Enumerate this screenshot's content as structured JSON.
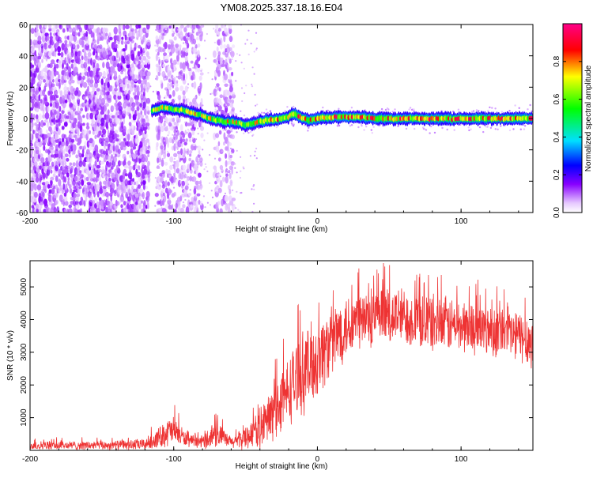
{
  "title": "YM08.2025.337.18.16.E04",
  "chart_data": [
    {
      "type": "heatmap",
      "xlabel": "Height of straight line (km)",
      "ylabel": "Frequency (Hz)",
      "xlim": [
        -200,
        150
      ],
      "ylim": [
        -60,
        60
      ],
      "xticks": [
        -200,
        -100,
        0,
        100
      ],
      "xtick_labels": [
        "-200",
        "-100",
        "0",
        "100"
      ],
      "yticks": [
        -60,
        -40,
        -20,
        0,
        20,
        40,
        60
      ],
      "ytick_labels": [
        "-60",
        "-40",
        "-20",
        "0",
        "20",
        "40",
        "60"
      ],
      "colorbar": {
        "label": "Normalized spectral amplitude",
        "range": [
          0,
          1
        ],
        "ticks": [
          0,
          0.2,
          0.4,
          0.6,
          0.8
        ],
        "tick_labels": [
          "0.0",
          "0.2",
          "0.4",
          "0.6",
          "0.8"
        ],
        "colors": [
          "#ffffff",
          "#8800ff",
          "#0000ff",
          "#00e0ff",
          "#00ff00",
          "#ffff00",
          "#ff0000",
          "#ff0088"
        ]
      },
      "noise_region_x": [
        -200,
        -117
      ],
      "noise_strips_x": [
        [
          -112,
          -80
        ],
        [
          -72,
          -58
        ]
      ],
      "signal_ridge": {
        "x": [
          -115,
          -108,
          -100,
          -92,
          -85,
          -80,
          -75,
          -70,
          -65,
          -60,
          -55,
          -50,
          -45,
          -40,
          -35,
          -30,
          -25,
          -20,
          -17,
          -14,
          -10,
          -5,
          0,
          10,
          20,
          30,
          40,
          50,
          60,
          80,
          100,
          120,
          150
        ],
        "freq": [
          5,
          7,
          6,
          5,
          3,
          2,
          0,
          -1,
          -2,
          -2,
          -3,
          -4,
          -3,
          -2,
          -1,
          -1,
          0,
          1,
          3,
          2,
          0,
          -1,
          0,
          1,
          1,
          1,
          0,
          0,
          0,
          0,
          0,
          0,
          0
        ]
      }
    },
    {
      "type": "line",
      "xlabel": "Height of straight line (km)",
      "ylabel": "SNR (10 * v/v)",
      "xlim": [
        -200,
        150
      ],
      "ylim": [
        0,
        5800
      ],
      "xticks": [
        -200,
        -100,
        0,
        100
      ],
      "xtick_labels": [
        "-200",
        "-100",
        "0",
        "100"
      ],
      "yticks": [
        1000,
        2000,
        3000,
        4000,
        5000
      ],
      "ytick_labels": [
        "1000",
        "2000",
        "3000",
        "4000",
        "5000"
      ],
      "color": "#ee3333",
      "envelope": {
        "x": [
          -200,
          -150,
          -120,
          -110,
          -105,
          -100,
          -95,
          -90,
          -80,
          -75,
          -70,
          -65,
          -60,
          -55,
          -50,
          -45,
          -40,
          -35,
          -30,
          -25,
          -20,
          -15,
          -10,
          -5,
          0,
          5,
          10,
          15,
          20,
          25,
          30,
          40,
          50,
          60,
          70,
          80,
          100,
          120,
          130,
          140,
          150
        ],
        "base": [
          150,
          150,
          180,
          400,
          550,
          600,
          450,
          280,
          250,
          400,
          550,
          350,
          250,
          300,
          400,
          550,
          700,
          900,
          1200,
          1500,
          1800,
          2200,
          2400,
          2600,
          2800,
          3100,
          3300,
          3600,
          3800,
          3900,
          4000,
          4000,
          4100,
          4100,
          4000,
          3900,
          3800,
          3700,
          3600,
          3500,
          3300
        ],
        "spread": [
          150,
          150,
          200,
          350,
          500,
          500,
          350,
          200,
          200,
          400,
          500,
          300,
          200,
          300,
          400,
          500,
          700,
          900,
          1000,
          1100,
          1200,
          1300,
          1400,
          1400,
          1400,
          1300,
          1200,
          1200,
          1100,
          1100,
          1100,
          1000,
          1000,
          1000,
          1000,
          1000,
          900,
          900,
          900,
          900,
          900
        ]
      }
    }
  ]
}
